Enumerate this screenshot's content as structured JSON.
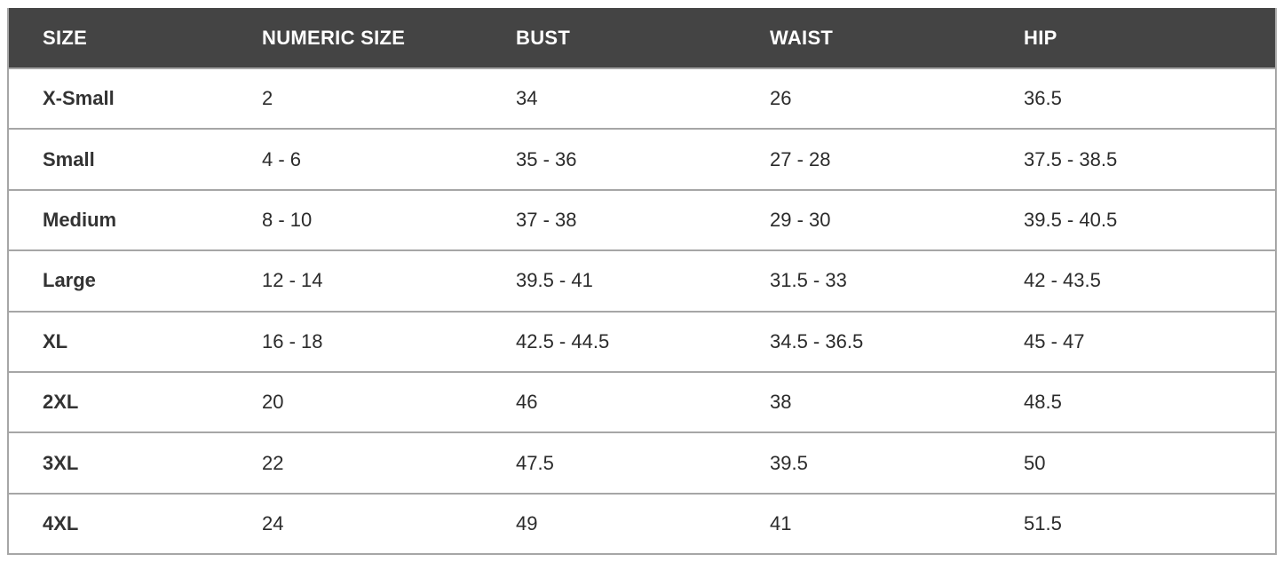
{
  "headers": [
    "SIZE",
    "NUMERIC SIZE",
    "BUST",
    "WAIST",
    "HIP"
  ],
  "rows": [
    [
      "X-Small",
      "2",
      "34",
      "26",
      "36.5"
    ],
    [
      "Small",
      "4 - 6",
      "35 - 36",
      "27 - 28",
      "37.5 - 38.5"
    ],
    [
      "Medium",
      "8 - 10",
      "37 - 38",
      "29 - 30",
      "39.5 - 40.5"
    ],
    [
      "Large",
      "12 - 14",
      "39.5 - 41",
      "31.5 - 33",
      "42 - 43.5"
    ],
    [
      "XL",
      "16 - 18",
      "42.5 - 44.5",
      "34.5 - 36.5",
      "45 - 47"
    ],
    [
      "2XL",
      "20",
      "46",
      "38",
      "48.5"
    ],
    [
      "3XL",
      "22",
      "47.5",
      "39.5",
      "50"
    ],
    [
      "4XL",
      "24",
      "49",
      "41",
      "51.5"
    ]
  ],
  "colors": {
    "header_bg": "#444444",
    "header_text": "#ffffff",
    "border": "#a6a6a6"
  }
}
